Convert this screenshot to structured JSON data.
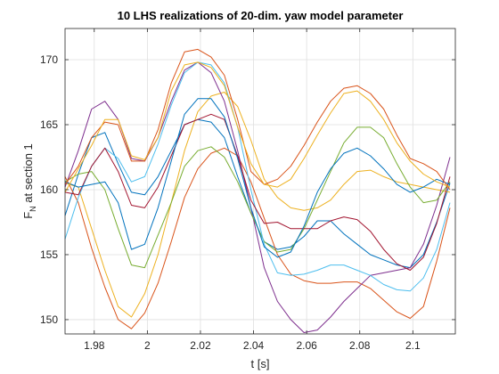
{
  "chart_data": {
    "type": "line",
    "title": "10 LHS realizations of 20-dim. yaw model parameter",
    "xlabel": "t [s]",
    "ylabel_main": "F",
    "ylabel_sub": "N",
    "ylabel_rest": " at section 1",
    "xlim": [
      1.969,
      2.116
    ],
    "ylim": [
      148.9,
      172.4
    ],
    "xticks": [
      1.98,
      2.0,
      2.02,
      2.04,
      2.06,
      2.08,
      2.1
    ],
    "xtick_labels": [
      "1.98",
      "2",
      "2.02",
      "2.04",
      "2.06",
      "2.08",
      "2.1"
    ],
    "yticks": [
      150,
      155,
      160,
      165,
      170
    ],
    "ytick_labels": [
      "150",
      "155",
      "160",
      "165",
      "170"
    ],
    "grid": true,
    "x": [
      1.969,
      1.974,
      1.979,
      1.984,
      1.989,
      1.994,
      1.999,
      2.004,
      2.009,
      2.014,
      2.019,
      2.024,
      2.029,
      2.034,
      2.039,
      2.044,
      2.049,
      2.054,
      2.059,
      2.064,
      2.069,
      2.074,
      2.079,
      2.084,
      2.089,
      2.094,
      2.099,
      2.104,
      2.109,
      2.114
    ],
    "series": [
      {
        "color": "#0072BD",
        "values": [
          158.0,
          161.2,
          164.0,
          164.4,
          162.0,
          159.8,
          159.6,
          161.0,
          163.0,
          165.0,
          165.4,
          165.2,
          164.0,
          161.0,
          158.2,
          156.0,
          155.4,
          155.6,
          156.4,
          157.6,
          157.6,
          156.6,
          155.8,
          155.0,
          154.6,
          154.2,
          154.0,
          155.0,
          157.5,
          160.5
        ]
      },
      {
        "color": "#D95319",
        "values": [
          161.0,
          159.0,
          155.5,
          152.5,
          150.0,
          149.3,
          150.5,
          152.8,
          156.0,
          159.4,
          161.6,
          162.8,
          163.2,
          162.6,
          160.6,
          157.8,
          155.0,
          153.5,
          153.0,
          152.8,
          152.8,
          152.9,
          152.9,
          152.4,
          151.5,
          150.6,
          150.1,
          151.0,
          154.5,
          158.6
        ]
      },
      {
        "color": "#EDB120",
        "values": [
          160.5,
          160.2,
          157.0,
          153.8,
          151.0,
          150.2,
          152.0,
          155.0,
          159.0,
          163.0,
          166.0,
          167.2,
          167.5,
          166.4,
          163.8,
          160.8,
          159.4,
          158.6,
          158.4,
          158.6,
          159.2,
          160.4,
          161.4,
          161.5,
          161.0,
          160.6,
          160.4,
          160.2,
          160.0,
          159.8
        ]
      },
      {
        "color": "#7E2F8E",
        "values": [
          160.2,
          163.0,
          166.2,
          166.8,
          165.4,
          162.4,
          162.2,
          164.0,
          166.8,
          169.2,
          169.8,
          169.0,
          166.8,
          163.0,
          158.6,
          154.0,
          151.4,
          150.0,
          149.0,
          149.2,
          150.2,
          151.4,
          152.4,
          153.4,
          153.6,
          153.8,
          154.0,
          155.8,
          158.8,
          162.5
        ]
      },
      {
        "color": "#77AC30",
        "values": [
          160.6,
          161.2,
          161.4,
          160.0,
          157.0,
          154.2,
          154.0,
          156.5,
          159.0,
          161.8,
          163.0,
          163.3,
          162.5,
          160.6,
          158.2,
          156.0,
          155.2,
          155.4,
          157.0,
          159.2,
          161.4,
          163.6,
          164.8,
          164.8,
          164.0,
          162.0,
          160.2,
          159.0,
          159.2,
          160.6
        ]
      },
      {
        "color": "#4DBEEE",
        "values": [
          156.2,
          159.4,
          161.8,
          163.2,
          162.4,
          160.6,
          161.0,
          163.5,
          166.5,
          169.0,
          169.8,
          169.6,
          168.2,
          164.8,
          160.0,
          155.8,
          153.6,
          153.4,
          153.5,
          153.8,
          154.2,
          154.2,
          153.8,
          153.4,
          152.7,
          152.3,
          152.2,
          153.2,
          155.4,
          159.0
        ]
      },
      {
        "color": "#A2142F",
        "values": [
          159.8,
          159.6,
          161.8,
          163.2,
          161.4,
          158.8,
          158.6,
          160.2,
          162.6,
          165.0,
          165.4,
          165.8,
          165.4,
          162.6,
          159.2,
          157.4,
          157.5,
          157.0,
          157.0,
          157.0,
          157.6,
          157.9,
          157.7,
          156.8,
          155.4,
          154.3,
          153.8,
          154.8,
          157.4,
          161.0
        ]
      },
      {
        "color": "#0072BD",
        "values": [
          160.6,
          160.2,
          160.4,
          160.6,
          159.0,
          155.4,
          155.8,
          158.6,
          162.2,
          165.8,
          167.0,
          167.0,
          165.6,
          162.4,
          158.6,
          155.6,
          154.8,
          155.2,
          157.2,
          159.8,
          161.6,
          162.8,
          163.2,
          162.6,
          161.6,
          160.4,
          159.8,
          160.2,
          160.8,
          160.4
        ]
      },
      {
        "color": "#D95319",
        "values": [
          160.4,
          161.8,
          164.0,
          165.2,
          165.0,
          162.2,
          162.2,
          164.6,
          168.2,
          170.6,
          170.8,
          170.2,
          168.8,
          165.4,
          161.4,
          160.4,
          160.8,
          161.8,
          163.4,
          165.2,
          166.8,
          167.8,
          168.0,
          167.4,
          166.2,
          164.2,
          162.4,
          162.0,
          161.4,
          160.0
        ]
      },
      {
        "color": "#EDB120",
        "values": [
          159.8,
          161.6,
          163.4,
          165.4,
          165.4,
          162.6,
          162.3,
          164.0,
          167.6,
          169.6,
          169.8,
          169.4,
          168.0,
          164.8,
          162.0,
          160.4,
          160.2,
          160.8,
          162.4,
          164.2,
          165.9,
          167.4,
          167.6,
          166.8,
          165.4,
          163.6,
          162.2,
          161.2,
          160.6,
          160.2
        ]
      }
    ]
  }
}
